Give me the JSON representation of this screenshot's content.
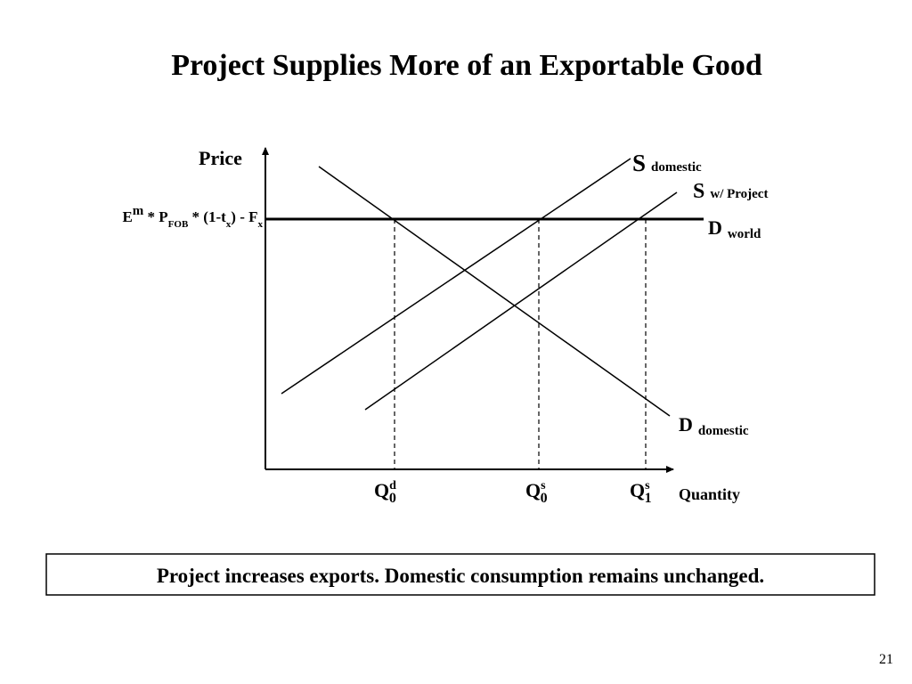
{
  "title": "Project Supplies More of an Exportable Good",
  "axes": {
    "y_label": "Price",
    "x_label": "Quantity"
  },
  "price_label": {
    "parts": [
      "E",
      "m",
      " * P",
      "FOB",
      " * (1-t",
      "x",
      ") - F",
      "x"
    ]
  },
  "curves": {
    "s_domestic": {
      "main": "S",
      "sub": "domestic"
    },
    "s_project": {
      "main": "S",
      "sub": "w/ Project"
    },
    "d_world": {
      "main": "D",
      "sub": "world"
    },
    "d_domestic": {
      "main": "D",
      "sub": "domestic"
    }
  },
  "quantities": [
    {
      "main": "Q",
      "sup": "d",
      "sub": "0"
    },
    {
      "main": "Q",
      "sup": "s",
      "sub": "0"
    },
    {
      "main": "Q",
      "sup": "s",
      "sub": "1"
    }
  ],
  "caption": "Project increases exports.  Domestic consumption remains unchanged.",
  "page_number": "21"
}
